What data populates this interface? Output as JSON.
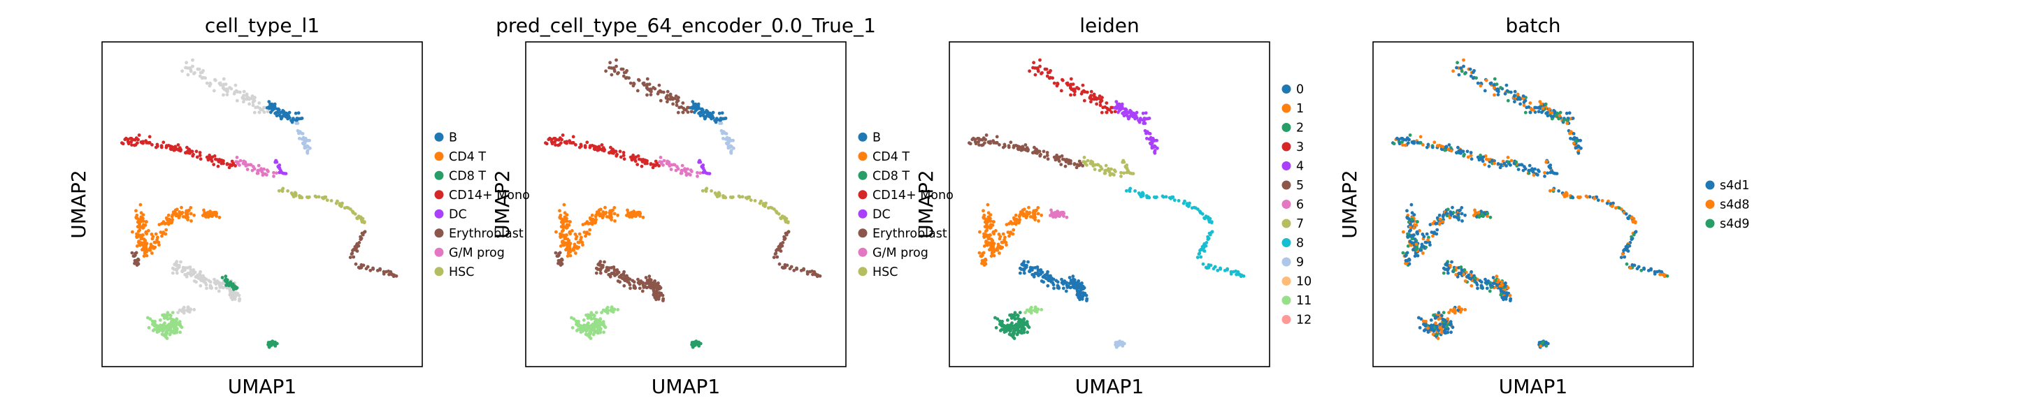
{
  "figure": {
    "colors": {
      "tab10": [
        "#1f77b4",
        "#ff7f0e",
        "#279e68",
        "#d62728",
        "#aa40fc",
        "#8c564b",
        "#e377c2",
        "#b5bd61",
        "#17becf",
        "#aec7e8",
        "#ffbb78",
        "#98df8a",
        "#ff9896"
      ],
      "unassigned": "#d3d3d3",
      "frame": "#000000"
    }
  },
  "chart_data": [
    {
      "type": "scatter",
      "title": "cell_type_l1",
      "xlabel": "UMAP1",
      "ylabel": "UMAP2",
      "grid": false,
      "legend_position": "right",
      "legend": [
        "B",
        "CD4 T",
        "CD8 T",
        "CD14+ Mono",
        "DC",
        "Erythroblast",
        "G/M prog",
        "HSC"
      ]
    },
    {
      "type": "scatter",
      "title": "pred_cell_type_64_encoder_0.0_True_1",
      "xlabel": "UMAP1",
      "ylabel": "UMAP2",
      "grid": false,
      "legend_position": "right",
      "legend": [
        "B",
        "CD4 T",
        "CD8 T",
        "CD14+ Mono",
        "DC",
        "Erythroblast",
        "G/M prog",
        "HSC"
      ]
    },
    {
      "type": "scatter",
      "title": "leiden",
      "xlabel": "UMAP1",
      "ylabel": "UMAP2",
      "grid": false,
      "legend_position": "right",
      "legend": [
        "0",
        "1",
        "2",
        "3",
        "4",
        "5",
        "6",
        "7",
        "8",
        "9",
        "10",
        "11",
        "12"
      ]
    },
    {
      "type": "scatter",
      "title": "batch",
      "xlabel": "UMAP1",
      "ylabel": "UMAP2",
      "grid": false,
      "legend_position": "right",
      "legend": [
        "s4d1",
        "s4d8",
        "s4d9"
      ]
    }
  ]
}
